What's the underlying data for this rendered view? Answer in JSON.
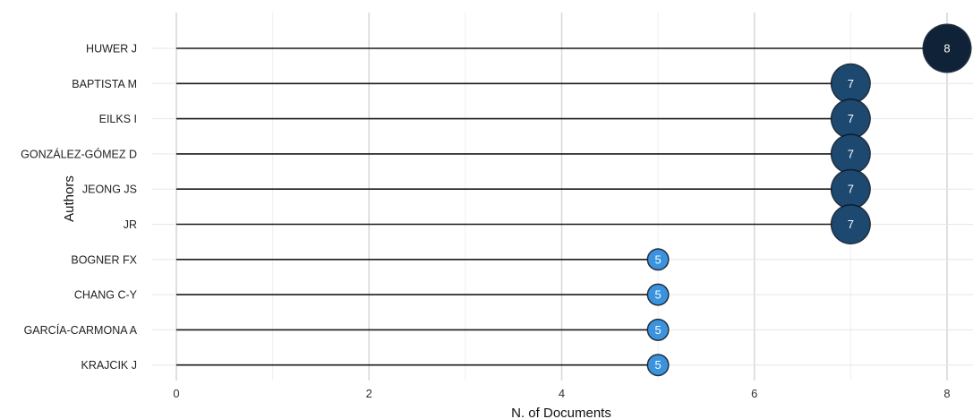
{
  "chart_data": {
    "type": "lollipop",
    "xlabel": "N. of Documents",
    "ylabel": "Authors",
    "xlim": [
      0,
      8.3
    ],
    "xticks": [
      0,
      2,
      4,
      6,
      8
    ],
    "grid": true,
    "categories": [
      "HUWER J",
      "BAPTISTA M",
      "EILKS I",
      "GONZÁLEZ-GÓMEZ D",
      "JEONG JS",
      "JR",
      "BOGNER FX",
      "CHANG C-Y",
      "GARCÍA-CARMONA A",
      "KRAJCIK J"
    ],
    "values": [
      8,
      7,
      7,
      7,
      7,
      7,
      5,
      5,
      5,
      5
    ],
    "color_scale": {
      "low": "#3a93dc",
      "high": "#0f2238"
    }
  }
}
